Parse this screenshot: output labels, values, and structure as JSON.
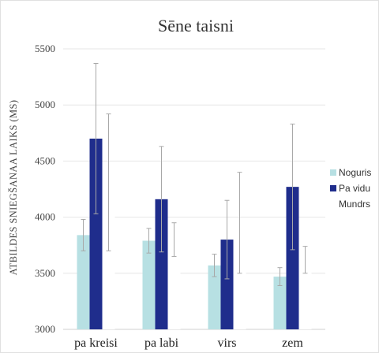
{
  "chart_data": {
    "type": "bar",
    "title": "Sēne taisni",
    "xlabel": "",
    "ylabel": "ATBILDES SNIEGŠANAA LAIKS (MS)",
    "ylim": [
      3000,
      5500
    ],
    "yticks": [
      3000,
      3500,
      4000,
      4500,
      5000,
      5500
    ],
    "grid": true,
    "legend_position": "right",
    "categories": [
      "pa kreisi",
      "pa labi",
      "virs",
      "zem"
    ],
    "series": [
      {
        "name": "Noguris",
        "color": "#b7e0e3",
        "values": [
          3840,
          3790,
          3570,
          3470
        ],
        "error": [
          140,
          110,
          100,
          80
        ]
      },
      {
        "name": "Pa vidu",
        "color": "#1f2d8c",
        "values": [
          4700,
          4160,
          3800,
          4270
        ],
        "error": [
          670,
          470,
          350,
          560
        ]
      },
      {
        "name": "Mundrs",
        "color": "#ffffff",
        "values": [
          4310,
          3800,
          3950,
          3620
        ],
        "error": [
          610,
          150,
          450,
          120
        ]
      }
    ]
  }
}
